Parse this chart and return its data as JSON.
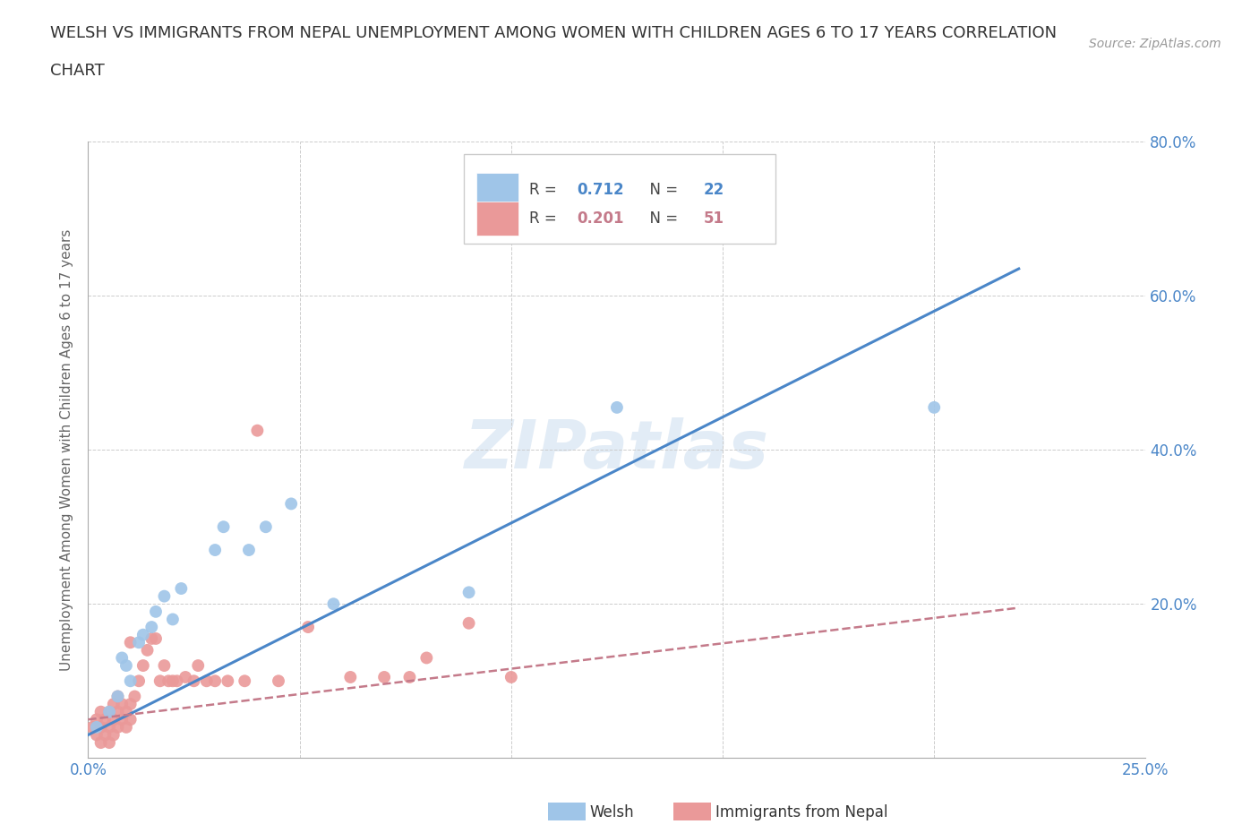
{
  "title_line1": "WELSH VS IMMIGRANTS FROM NEPAL UNEMPLOYMENT AMONG WOMEN WITH CHILDREN AGES 6 TO 17 YEARS CORRELATION",
  "title_line2": "CHART",
  "source": "Source: ZipAtlas.com",
  "ylabel": "Unemployment Among Women with Children Ages 6 to 17 years",
  "xlim": [
    0.0,
    0.25
  ],
  "ylim": [
    0.0,
    0.8
  ],
  "xticks": [
    0.0,
    0.05,
    0.1,
    0.15,
    0.2,
    0.25
  ],
  "xticklabels": [
    "0.0%",
    "",
    "",
    "",
    "",
    "25.0%"
  ],
  "yticks": [
    0.0,
    0.2,
    0.4,
    0.6,
    0.8
  ],
  "yticklabels": [
    "",
    "20.0%",
    "40.0%",
    "60.0%",
    "80.0%"
  ],
  "welsh_color": "#9fc5e8",
  "nepal_color": "#ea9999",
  "welsh_line_color": "#4a86c8",
  "nepal_line_color": "#c47a8a",
  "watermark": "ZIPatlas",
  "legend_welsh_R": "0.712",
  "legend_welsh_N": "22",
  "legend_nepal_R": "0.201",
  "legend_nepal_N": "51",
  "welsh_x": [
    0.002,
    0.005,
    0.007,
    0.008,
    0.009,
    0.01,
    0.012,
    0.013,
    0.015,
    0.016,
    0.018,
    0.02,
    0.022,
    0.03,
    0.032,
    0.038,
    0.042,
    0.048,
    0.058,
    0.09,
    0.125,
    0.2
  ],
  "welsh_y": [
    0.04,
    0.06,
    0.08,
    0.13,
    0.12,
    0.1,
    0.15,
    0.16,
    0.17,
    0.19,
    0.21,
    0.18,
    0.22,
    0.27,
    0.3,
    0.27,
    0.3,
    0.33,
    0.2,
    0.215,
    0.455,
    0.455
  ],
  "nepal_x": [
    0.001,
    0.002,
    0.002,
    0.003,
    0.003,
    0.003,
    0.004,
    0.004,
    0.005,
    0.005,
    0.005,
    0.006,
    0.006,
    0.006,
    0.007,
    0.007,
    0.007,
    0.008,
    0.008,
    0.009,
    0.009,
    0.01,
    0.01,
    0.01,
    0.011,
    0.012,
    0.013,
    0.014,
    0.015,
    0.016,
    0.017,
    0.018,
    0.019,
    0.02,
    0.021,
    0.023,
    0.025,
    0.026,
    0.028,
    0.03,
    0.033,
    0.037,
    0.04,
    0.045,
    0.052,
    0.062,
    0.07,
    0.076,
    0.08,
    0.09,
    0.1
  ],
  "nepal_y": [
    0.04,
    0.03,
    0.05,
    0.02,
    0.04,
    0.06,
    0.03,
    0.05,
    0.02,
    0.04,
    0.06,
    0.03,
    0.05,
    0.07,
    0.04,
    0.06,
    0.08,
    0.05,
    0.07,
    0.04,
    0.06,
    0.05,
    0.07,
    0.15,
    0.08,
    0.1,
    0.12,
    0.14,
    0.155,
    0.155,
    0.1,
    0.12,
    0.1,
    0.1,
    0.1,
    0.105,
    0.1,
    0.12,
    0.1,
    0.1,
    0.1,
    0.1,
    0.425,
    0.1,
    0.17,
    0.105,
    0.105,
    0.105,
    0.13,
    0.175,
    0.105
  ],
  "welsh_trendline_x": [
    0.0,
    0.22
  ],
  "welsh_trendline_y": [
    0.03,
    0.635
  ],
  "nepal_trendline_x": [
    0.0,
    0.22
  ],
  "nepal_trendline_y": [
    0.05,
    0.195
  ],
  "background_color": "#ffffff",
  "grid_color": "#cccccc",
  "title_color": "#333333",
  "axis_label_color": "#666666",
  "tick_label_color": "#4a86c8",
  "figsize": [
    14.06,
    9.3
  ],
  "dpi": 100
}
